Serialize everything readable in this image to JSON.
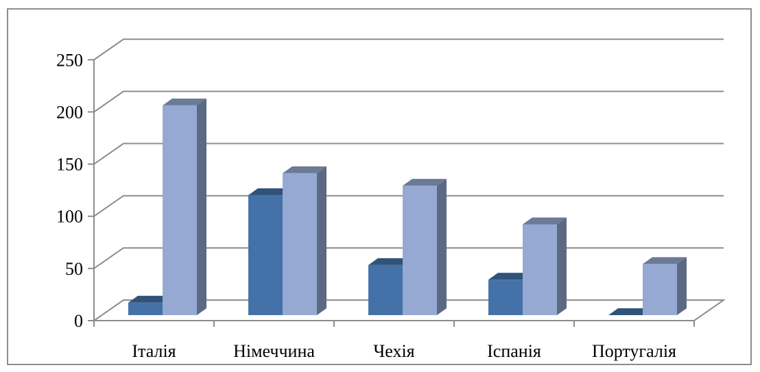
{
  "chart_data": {
    "type": "bar",
    "categories": [
      "Італія",
      "Німеччина",
      "Чехія",
      "Іспанія",
      "Португалія"
    ],
    "series": [
      {
        "values": [
          12,
          115,
          48,
          34,
          0
        ],
        "color": "#4472a8"
      },
      {
        "values": [
          201,
          136,
          124,
          87,
          49
        ],
        "color": "#95a9d2"
      }
    ],
    "yticks": [
      "0",
      "50",
      "100",
      "150",
      "200",
      "250"
    ],
    "ylim": [
      0,
      250
    ],
    "grid": true,
    "legend": "none",
    "title": "",
    "xlabel": "",
    "ylabel": ""
  }
}
